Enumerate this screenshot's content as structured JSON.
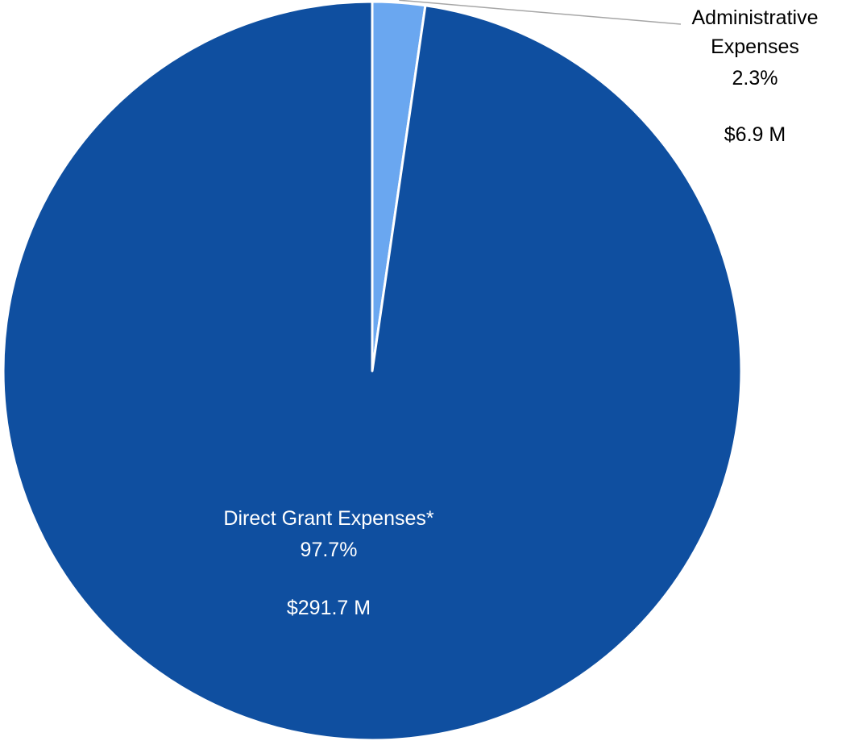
{
  "chart_data": {
    "type": "pie",
    "start_angle_deg": 0,
    "direction": "clockwise",
    "slices": [
      {
        "name": "Administrative Expenses",
        "label_lines": [
          "Administrative",
          "Expenses"
        ],
        "percent": 2.3,
        "percent_text": "2.3%",
        "amount": 6.9,
        "amount_text": "$6.9 M",
        "color": "#6aa7f0",
        "label_color": "#000000",
        "label_placement": "outside-top-right",
        "leader_line": true
      },
      {
        "name": "Direct Grant Expenses*",
        "label_lines": [
          "Direct Grant Expenses*"
        ],
        "percent": 97.7,
        "percent_text": "97.7%",
        "amount": 291.7,
        "amount_text": "$291.7 M",
        "color": "#0f4fa0",
        "label_color": "#ffffff",
        "label_placement": "inside-lower",
        "leader_line": false
      }
    ],
    "leader_line_color": "#a6a6a6"
  }
}
